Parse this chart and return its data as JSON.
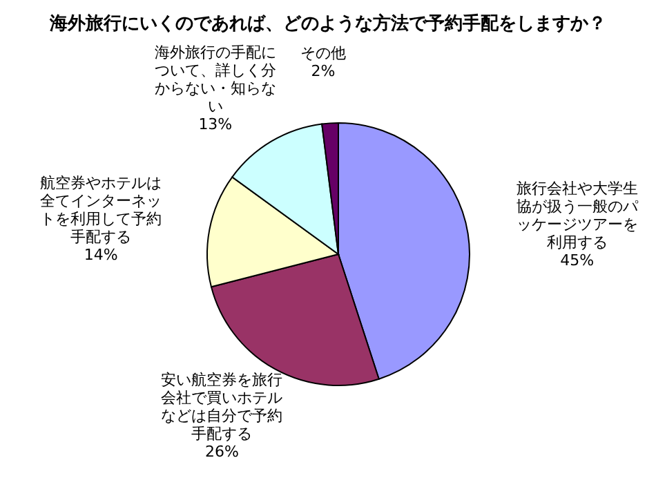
{
  "chart_data": {
    "type": "pie",
    "title": "海外旅行にいくのであれば、どのような方法で予約手配をしますか？",
    "categories": [
      "旅行会社や大学生協が扱う一般のパッケージツアーを利用する",
      "安い航空券を旅行会社で買いホテルなどは自分で予約手配する",
      "航空券やホテルは全てインターネットを利用して予約手配する",
      "海外旅行の手配について、詳しく分からない・知らない",
      "その他"
    ],
    "values": [
      45,
      26,
      14,
      13,
      2
    ],
    "colors": [
      "#9999ff",
      "#993366",
      "#ffffcc",
      "#ccffff",
      "#660066"
    ],
    "value_labels": [
      "45%",
      "26%",
      "14%",
      "13%",
      "2%"
    ]
  }
}
